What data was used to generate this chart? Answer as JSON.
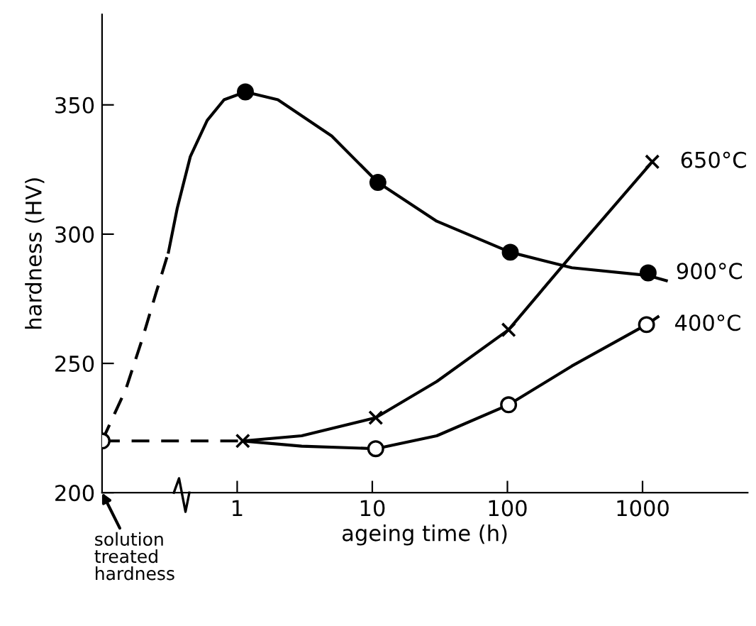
{
  "chart_data": {
    "type": "line",
    "xlabel": "ageing time (h)",
    "ylabel": "hardness (HV)",
    "log": "x",
    "xlim": [
      0.1,
      6000
    ],
    "xticks": [
      1,
      10,
      100,
      1000
    ],
    "ylim": [
      200,
      385
    ],
    "yticks": [
      200,
      250,
      300,
      350
    ],
    "grid": false,
    "legend": false,
    "series": [
      {
        "line_style": "dashed",
        "marker": "none",
        "color": "#000000",
        "x": [
          0.1,
          1.1
        ],
        "values": [
          220,
          220
        ]
      },
      {
        "line_style": "dashed",
        "marker": "none",
        "color": "#000000",
        "x": [
          0.1,
          0.15,
          0.2,
          0.25,
          0.31
        ],
        "values": [
          220,
          240,
          260,
          277,
          293
        ]
      },
      {
        "line_style": "solid",
        "marker": "none",
        "color": "#000000",
        "x": [
          0.31,
          0.36,
          0.45,
          0.6,
          0.8,
          1.15,
          2,
          5,
          11,
          30,
          105,
          300,
          1100,
          1500
        ],
        "values": [
          293,
          310,
          330,
          344,
          352,
          355,
          352,
          338,
          320,
          305,
          293,
          287,
          284,
          282
        ]
      },
      {
        "type": "scatter",
        "name": "900°C",
        "marker": "circle",
        "color": "#000000",
        "x": [
          1.15,
          11,
          105,
          1100
        ],
        "values": [
          355,
          320,
          293,
          285
        ]
      },
      {
        "line_style": "solid",
        "marker": "none",
        "color": "#000000",
        "x": [
          1.1,
          3,
          10.6,
          30,
          102,
          300,
          1180
        ],
        "values": [
          220,
          222,
          229,
          243,
          263,
          292,
          328
        ]
      },
      {
        "type": "scatter",
        "name": "650°C",
        "marker": "cross",
        "color": "#000000",
        "x": [
          1.1,
          10.6,
          102,
          1180
        ],
        "values": [
          220,
          229,
          263,
          328
        ]
      },
      {
        "line_style": "solid",
        "marker": "none",
        "color": "#000000",
        "x": [
          1.1,
          3,
          10.6,
          30,
          102,
          300,
          1070,
          1300
        ],
        "values": [
          220,
          218,
          217,
          222,
          234,
          249,
          265,
          268
        ]
      },
      {
        "type": "scatter",
        "name": "400°C",
        "marker": "circle",
        "color": "#ffffff",
        "x": [
          0.1,
          10.6,
          102,
          1070
        ],
        "values": [
          220,
          217,
          234,
          265
        ]
      }
    ],
    "annotations": [
      "solution\ntreated\nhardness"
    ]
  }
}
